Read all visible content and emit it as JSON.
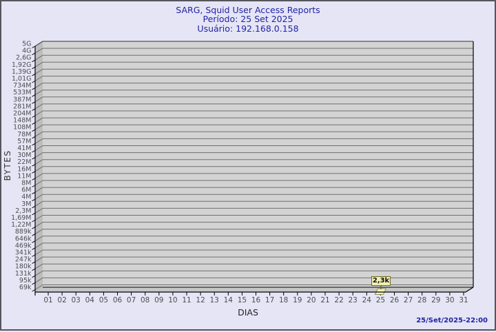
{
  "header": {
    "title": "SARG, Squid User Access Reports",
    "period": "Período: 25 Set 2025",
    "user": "Usuário: 192.168.0.158"
  },
  "footer": {
    "timestamp": "25/Set/2025-22:00"
  },
  "chart_data": {
    "type": "bar",
    "title": "SARG, Squid User Access Reports",
    "subtitle": [
      "Período: 25 Set 2025",
      "Usuário: 192.168.0.158"
    ],
    "xlabel": "DIAS",
    "ylabel": "BYTES",
    "scale": "log",
    "grid": true,
    "legend": null,
    "categories": [
      "01",
      "02",
      "03",
      "04",
      "05",
      "06",
      "07",
      "08",
      "09",
      "10",
      "11",
      "12",
      "13",
      "14",
      "15",
      "16",
      "17",
      "18",
      "19",
      "20",
      "21",
      "22",
      "23",
      "24",
      "25",
      "26",
      "27",
      "28",
      "29",
      "30",
      "31"
    ],
    "series": [
      {
        "name": "Bytes",
        "values": [
          0,
          0,
          0,
          0,
          0,
          0,
          0,
          0,
          0,
          0,
          0,
          0,
          0,
          0,
          0,
          0,
          0,
          0,
          0,
          0,
          0,
          0,
          0,
          0,
          2300,
          0,
          0,
          0,
          0,
          0,
          0
        ]
      }
    ],
    "y_ticks": [
      "5G",
      "4G",
      "2,6G",
      "1,92G",
      "1,39G",
      "1,01G",
      "734M",
      "533M",
      "387M",
      "281M",
      "204M",
      "148M",
      "108M",
      "78M",
      "57M",
      "41M",
      "30M",
      "22M",
      "16M",
      "11M",
      "8M",
      "6M",
      "4M",
      "3M",
      "2,3M",
      "1,69M",
      "1,22M",
      "889k",
      "646k",
      "469k",
      "341k",
      "247k",
      "180k",
      "131k",
      "95k",
      "69k"
    ],
    "annotation": {
      "category": "25",
      "label": "2,3k",
      "value_bytes": 2300
    },
    "colors": {
      "background": "#e5e5f6",
      "frame_border": "#55555f",
      "title_text": "#2323a3",
      "timestamp_text": "#2323a3",
      "plot_face": "#d3d3d3",
      "plot_wall": "#bdbdbd",
      "plot_floor": "#c6c6c6",
      "gridline": "#6f6f6f",
      "axis": "#000000",
      "tick_text": "#4d4d4d",
      "bar_fill": "#f3f0c4",
      "bar_stroke": "#8f8f4b",
      "annotation_bg": "#f0efb4",
      "annotation_border": "#6b6b1e",
      "annotation_text": "#111111"
    }
  }
}
